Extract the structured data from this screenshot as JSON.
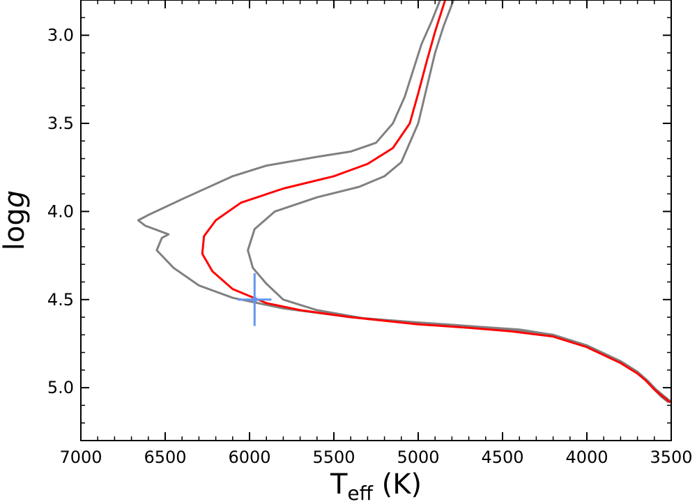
{
  "chart_data": {
    "type": "line",
    "xlabel_main": "T",
    "xlabel_sub": "eff",
    "xlabel_unit": " (K)",
    "ylabel_main": "log",
    "ylabel_italic": "g",
    "xlim": [
      7000,
      3500
    ],
    "ylim": [
      5.3,
      2.8
    ],
    "xticks": [
      7000,
      6500,
      6000,
      5500,
      5000,
      4500,
      4000,
      3500
    ],
    "xtick_labels": [
      "7000",
      "6500",
      "6000",
      "5500",
      "5000",
      "4500",
      "4000",
      "3500"
    ],
    "yticks": [
      3.0,
      3.5,
      4.0,
      4.5,
      5.0
    ],
    "ytick_labels": [
      "3.0",
      "3.5",
      "4.0",
      "4.5",
      "5.0"
    ],
    "series": [
      {
        "name": "isochrone-lower-bound",
        "color": "#808080",
        "points": [
          [
            3520,
            5.08
          ],
          [
            3560,
            5.05
          ],
          [
            3600,
            5.01
          ],
          [
            3640,
            4.97
          ],
          [
            3700,
            4.91
          ],
          [
            3800,
            4.85
          ],
          [
            4000,
            4.76
          ],
          [
            4200,
            4.7
          ],
          [
            4450,
            4.67
          ],
          [
            4700,
            4.65
          ],
          [
            5000,
            4.63
          ],
          [
            5400,
            4.6
          ],
          [
            5800,
            4.55
          ],
          [
            6100,
            4.49
          ],
          [
            6300,
            4.42
          ],
          [
            6450,
            4.32
          ],
          [
            6550,
            4.22
          ],
          [
            6520,
            4.15
          ],
          [
            6480,
            4.13
          ],
          [
            6620,
            4.08
          ],
          [
            6660,
            4.05
          ],
          [
            6600,
            4.02
          ],
          [
            6400,
            3.93
          ],
          [
            6100,
            3.8
          ],
          [
            5900,
            3.74
          ],
          [
            5600,
            3.69
          ],
          [
            5400,
            3.66
          ],
          [
            5250,
            3.61
          ],
          [
            5150,
            3.5
          ],
          [
            5080,
            3.35
          ],
          [
            5030,
            3.2
          ],
          [
            4980,
            3.05
          ],
          [
            4920,
            2.92
          ],
          [
            4870,
            2.8
          ]
        ]
      },
      {
        "name": "isochrone-best-fit",
        "color": "#ff0000",
        "points": [
          [
            3510,
            5.08
          ],
          [
            3550,
            5.05
          ],
          [
            3600,
            5.01
          ],
          [
            3650,
            4.96
          ],
          [
            3700,
            4.92
          ],
          [
            3800,
            4.86
          ],
          [
            4000,
            4.77
          ],
          [
            4200,
            4.71
          ],
          [
            4450,
            4.68
          ],
          [
            4700,
            4.66
          ],
          [
            5000,
            4.64
          ],
          [
            5400,
            4.6
          ],
          [
            5700,
            4.56
          ],
          [
            5900,
            4.52
          ],
          [
            6100,
            4.44
          ],
          [
            6220,
            4.34
          ],
          [
            6280,
            4.24
          ],
          [
            6270,
            4.14
          ],
          [
            6200,
            4.05
          ],
          [
            6050,
            3.95
          ],
          [
            5800,
            3.87
          ],
          [
            5500,
            3.8
          ],
          [
            5300,
            3.73
          ],
          [
            5150,
            3.64
          ],
          [
            5050,
            3.5
          ],
          [
            5000,
            3.33
          ],
          [
            4950,
            3.15
          ],
          [
            4900,
            2.98
          ],
          [
            4840,
            2.8
          ]
        ]
      },
      {
        "name": "isochrone-upper-bound",
        "color": "#808080",
        "points": [
          [
            3500,
            5.08
          ],
          [
            3540,
            5.05
          ],
          [
            3590,
            5.01
          ],
          [
            3640,
            4.96
          ],
          [
            3700,
            4.91
          ],
          [
            3800,
            4.85
          ],
          [
            4000,
            4.76
          ],
          [
            4200,
            4.7
          ],
          [
            4400,
            4.67
          ],
          [
            4700,
            4.65
          ],
          [
            5000,
            4.63
          ],
          [
            5300,
            4.61
          ],
          [
            5600,
            4.56
          ],
          [
            5800,
            4.5
          ],
          [
            5900,
            4.41
          ],
          [
            5980,
            4.32
          ],
          [
            6010,
            4.22
          ],
          [
            5970,
            4.1
          ],
          [
            5850,
            4.0
          ],
          [
            5600,
            3.92
          ],
          [
            5350,
            3.86
          ],
          [
            5200,
            3.8
          ],
          [
            5100,
            3.72
          ],
          [
            5000,
            3.5
          ],
          [
            4950,
            3.3
          ],
          [
            4900,
            3.1
          ],
          [
            4850,
            2.95
          ],
          [
            4790,
            2.8
          ]
        ]
      }
    ],
    "observation": {
      "name": "observed-star",
      "color": "#6495ed",
      "teff": 5970,
      "logg": 4.5,
      "teff_err": 100,
      "logg_err": 0.15
    }
  }
}
